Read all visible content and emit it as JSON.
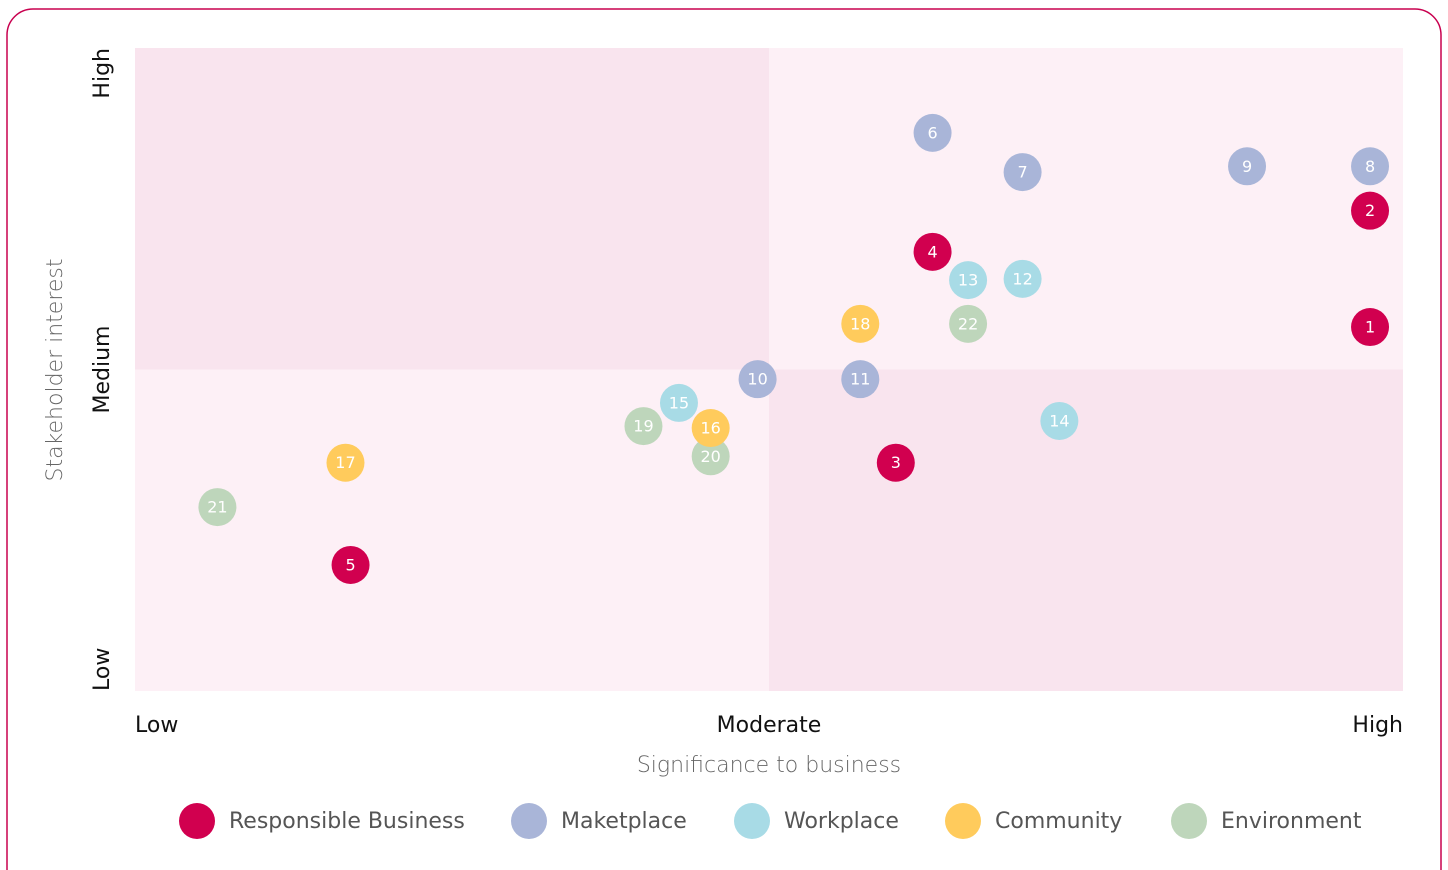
{
  "chart_data": {
    "type": "scatter",
    "x_label": "Significance to business",
    "y_label": "Stakeholder interest",
    "xlim": [
      0,
      10
    ],
    "ylim": [
      0,
      10
    ],
    "xticks": [
      {
        "value": 0,
        "label": "Low"
      },
      {
        "value": 5,
        "label": "Moderate"
      },
      {
        "value": 10,
        "label": "High"
      }
    ],
    "yticks": [
      {
        "value": 0,
        "label": "Low"
      },
      {
        "value": 5,
        "label": "Medium"
      },
      {
        "value": 10,
        "label": "High"
      }
    ],
    "legend": "bottom",
    "series": [
      {
        "name": "Responsible Business",
        "color": "#d1004f",
        "labels": [
          "1",
          "2",
          "3",
          "4",
          "5"
        ],
        "x": [
          9.74,
          9.74,
          6.0,
          6.29,
          1.7
        ],
        "values": [
          5.66,
          7.47,
          3.55,
          6.83,
          1.96
        ]
      },
      {
        "name": "Maketplace",
        "color": "#a9b5d8",
        "labels": [
          "6",
          "7",
          "8",
          "9",
          "10",
          "11"
        ],
        "x": [
          6.29,
          7.0,
          9.74,
          8.77,
          4.91,
          5.72
        ],
        "values": [
          8.68,
          8.07,
          8.16,
          8.16,
          4.85,
          4.85
        ]
      },
      {
        "name": "Workplace",
        "color": "#a8dbe6",
        "labels": [
          "12",
          "13",
          "14",
          "15"
        ],
        "x": [
          7.0,
          6.57,
          7.29,
          4.29
        ],
        "values": [
          6.41,
          6.39,
          4.2,
          4.48
        ]
      },
      {
        "name": "Environment",
        "color": "#bed6bb",
        "labels": [
          "19",
          "20",
          "21",
          "22"
        ],
        "x": [
          4.01,
          4.54,
          0.65,
          6.57
        ],
        "values": [
          4.12,
          3.65,
          2.86,
          5.71
        ]
      },
      {
        "name": "Community",
        "color": "#ffcb5c",
        "labels": [
          "16",
          "17",
          "18"
        ],
        "x": [
          4.54,
          1.66,
          5.72
        ],
        "values": [
          4.09,
          3.55,
          5.71
        ]
      }
    ]
  }
}
